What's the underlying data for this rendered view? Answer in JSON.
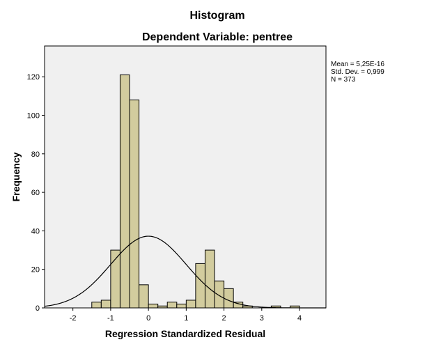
{
  "chart_data": {
    "type": "bar",
    "title": "Histogram",
    "subtitle": "Dependent Variable: pentree",
    "xlabel": "Regression Standardized Residual",
    "ylabel": "Frequency",
    "xlim": [
      -2.75,
      4.7
    ],
    "ylim": [
      0,
      136
    ],
    "xticks": [
      "-2",
      "-1",
      "0",
      "1",
      "2",
      "3",
      "4"
    ],
    "yticks": [
      "0",
      "20",
      "40",
      "60",
      "80",
      "100",
      "120"
    ],
    "bin_width": 0.25,
    "bins": [
      {
        "start": -1.5,
        "count": 3
      },
      {
        "start": -1.25,
        "count": 4
      },
      {
        "start": -1.0,
        "count": 30
      },
      {
        "start": -0.75,
        "count": 121
      },
      {
        "start": -0.5,
        "count": 108
      },
      {
        "start": -0.25,
        "count": 12
      },
      {
        "start": 0.0,
        "count": 2
      },
      {
        "start": 0.25,
        "count": 1
      },
      {
        "start": 0.5,
        "count": 3
      },
      {
        "start": 0.75,
        "count": 2
      },
      {
        "start": 1.0,
        "count": 4
      },
      {
        "start": 1.25,
        "count": 23
      },
      {
        "start": 1.5,
        "count": 30
      },
      {
        "start": 1.75,
        "count": 14
      },
      {
        "start": 2.0,
        "count": 10
      },
      {
        "start": 2.25,
        "count": 3
      },
      {
        "start": 2.5,
        "count": 1
      },
      {
        "start": 3.25,
        "count": 1
      },
      {
        "start": 3.75,
        "count": 1
      }
    ],
    "normal_curve": {
      "mean": 0,
      "sd": 0.999,
      "n": 373
    },
    "stats": {
      "mean_label": "Mean = 5,25E-16",
      "sd_label": "Std. Dev. = 0,999",
      "n_label": "N = 373"
    },
    "colors": {
      "bar_fill": "#d2cc9e",
      "bar_stroke": "#000000",
      "plot_background": "#f0f0f0",
      "curve": "#000000"
    }
  }
}
